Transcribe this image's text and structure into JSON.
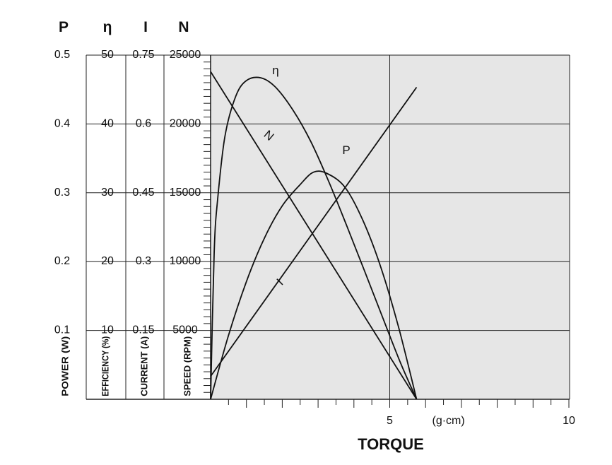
{
  "chart_data": {
    "type": "line",
    "xlabel": "TORQUE",
    "x_unit": "(g·cm)",
    "x_ticks": [
      "5",
      "10"
    ],
    "xlim": [
      0,
      10
    ],
    "grid": true,
    "axes": [
      {
        "symbol": "P",
        "title": "POWER (W)",
        "ticks": [
          "0.1",
          "0.2",
          "0.3",
          "0.4",
          "0.5"
        ],
        "range": [
          0,
          0.5
        ]
      },
      {
        "symbol": "η",
        "title": "EFFICIENCY (%)",
        "ticks": [
          "10",
          "20",
          "30",
          "40",
          "50"
        ],
        "range": [
          0,
          50
        ]
      },
      {
        "symbol": "I",
        "title": "CURRENT (A)",
        "ticks": [
          "0.15",
          "0.3",
          "0.45",
          "0.6",
          "0.75"
        ],
        "range": [
          0,
          0.75
        ]
      },
      {
        "symbol": "N",
        "title": "SPEED (RPM)",
        "ticks": [
          "5000",
          "10000",
          "15000",
          "20000",
          "25000"
        ],
        "range": [
          0,
          25000
        ]
      }
    ],
    "series": [
      {
        "name": "N",
        "axis": "N",
        "x": [
          0,
          5.75
        ],
        "y": [
          23800,
          0
        ]
      },
      {
        "name": "I",
        "axis": "I",
        "x": [
          0,
          5.75
        ],
        "y": [
          0.05,
          0.68
        ]
      },
      {
        "name": "P",
        "axis": "P",
        "x": [
          0,
          0.5,
          1.0,
          1.5,
          2.0,
          2.5,
          2.875,
          3.25,
          3.75,
          4.25,
          4.75,
          5.25,
          5.75
        ],
        "y": [
          0,
          0.093,
          0.171,
          0.234,
          0.281,
          0.312,
          0.33,
          0.328,
          0.308,
          0.26,
          0.192,
          0.104,
          0
        ]
      },
      {
        "name": "η",
        "axis": "η",
        "x": [
          0,
          0.1,
          0.2,
          0.4,
          0.7,
          1.0,
          1.4,
          1.8,
          2.3,
          2.8,
          3.3,
          3.8,
          4.3,
          4.8,
          5.3,
          5.75
        ],
        "y": [
          0,
          21.4,
          29.2,
          38.2,
          44.0,
          46.3,
          46.7,
          45.4,
          42.0,
          37.4,
          31.6,
          25.2,
          18.6,
          11.9,
          5.3,
          0
        ]
      }
    ]
  }
}
